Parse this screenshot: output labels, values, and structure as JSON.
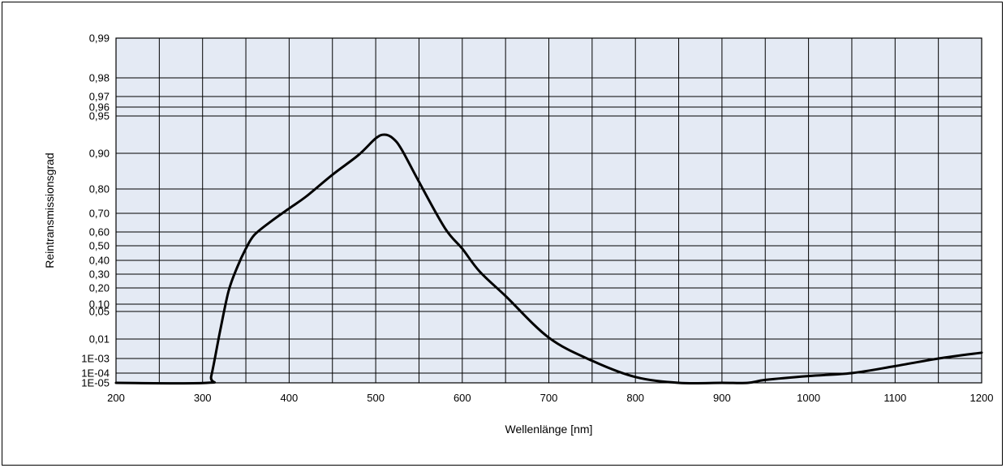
{
  "chart_data": {
    "type": "line",
    "title": "",
    "xlabel": "Wellenlänge [nm]",
    "ylabel": "Reintransmissionsgrad",
    "xlim": [
      200,
      1200
    ],
    "x_ticks": [
      200,
      300,
      400,
      500,
      600,
      700,
      800,
      900,
      1000,
      1100,
      1200
    ],
    "x_tick_labels": [
      "200",
      "300",
      "400",
      "500",
      "600",
      "700",
      "800",
      "900",
      "1000",
      "1100",
      "1200"
    ],
    "x_grid_step": 50,
    "y_scale": "nonlinear (probability-type scale)",
    "y_ticks": [
      0.99,
      0.98,
      0.97,
      0.96,
      0.95,
      0.9,
      0.8,
      0.7,
      0.6,
      0.5,
      0.4,
      0.3,
      0.2,
      0.1,
      0.05,
      0.01,
      0.001,
      0.0001,
      1e-05
    ],
    "y_tick_labels": [
      "0,99",
      "0,98",
      "0,97",
      "0,96",
      "0,95",
      "0,90",
      "0,80",
      "0,70",
      "0,60",
      "0,50",
      "0,40",
      "0,30",
      "0,20",
      "0,10",
      "0,05",
      "0,01",
      "1E-03",
      "1E-04",
      "1E-05"
    ],
    "grid": true,
    "legend": "none",
    "colors": {
      "plot_background": "#e4eaf4",
      "line": "#000000",
      "grid": "#000000"
    },
    "series": [
      {
        "x": [
          305,
          310,
          320,
          330,
          340,
          350,
          360,
          380,
          400,
          420,
          450,
          480,
          500,
          510,
          520,
          530,
          550,
          580,
          600,
          620,
          650,
          700,
          750,
          800,
          850,
          900,
          930,
          950,
          1000,
          1050,
          1100,
          1150,
          1200
        ],
        "y": [
          1e-05,
          5e-05,
          0.02,
          0.18,
          0.35,
          0.48,
          0.58,
          0.66,
          0.72,
          0.77,
          0.84,
          0.895,
          0.92,
          0.925,
          0.92,
          0.905,
          0.82,
          0.62,
          0.48,
          0.32,
          0.15,
          0.012,
          0.0007,
          4e-05,
          1e-05,
          1e-05,
          1e-05,
          2e-05,
          5e-05,
          0.0001,
          0.0003,
          0.001,
          0.002
        ]
      }
    ]
  }
}
